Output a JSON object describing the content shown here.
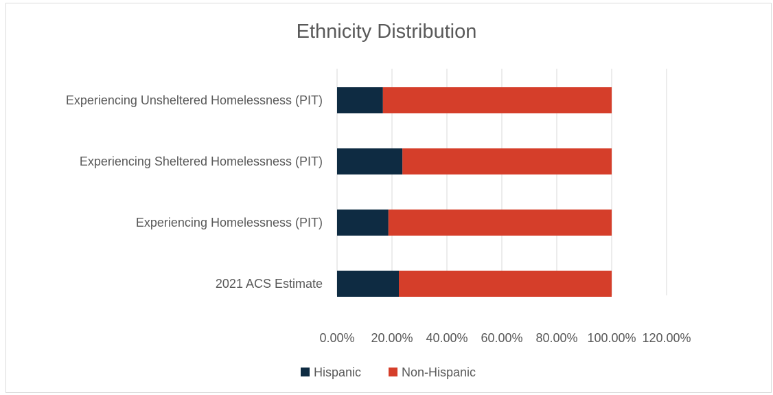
{
  "chart_data": {
    "type": "bar",
    "orientation": "horizontal",
    "stacked": true,
    "title": "Ethnicity Distribution",
    "categories": [
      "Experiencing Unsheltered Homelessness (PIT)",
      "Experiencing Sheltered Homelessness (PIT)",
      "Experiencing Homelessness (PIT)",
      "2021 ACS Estimate"
    ],
    "series": [
      {
        "name": "Hispanic",
        "color": "#0e2b42",
        "values": [
          16.7,
          23.8,
          18.7,
          22.5
        ]
      },
      {
        "name": "Non-Hispanic",
        "color": "#d53e2a",
        "values": [
          83.3,
          76.2,
          81.3,
          77.5
        ]
      }
    ],
    "xlim": [
      0,
      120
    ],
    "xticks": [
      "0.00%",
      "20.00%",
      "40.00%",
      "60.00%",
      "80.00%",
      "100.00%",
      "120.00%"
    ],
    "grid": true,
    "legend": "bottom"
  }
}
